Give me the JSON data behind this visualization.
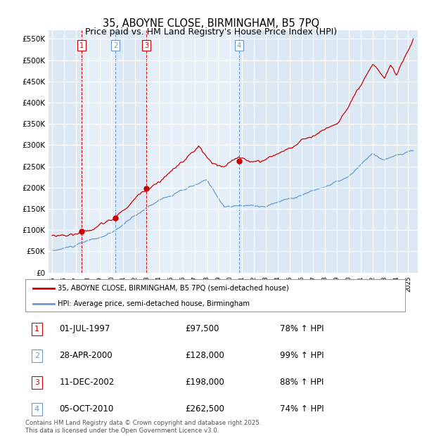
{
  "title": "35, ABOYNE CLOSE, BIRMINGHAM, B5 7PQ",
  "subtitle": "Price paid vs. HM Land Registry's House Price Index (HPI)",
  "ylim": [
    0,
    570000
  ],
  "yticks": [
    0,
    50000,
    100000,
    150000,
    200000,
    250000,
    300000,
    350000,
    400000,
    450000,
    500000,
    550000
  ],
  "background_color": "#dce9f5",
  "sale_prices": [
    97500,
    128000,
    198000,
    262500
  ],
  "sale_labels": [
    "1",
    "2",
    "3",
    "4"
  ],
  "sale_pcts": [
    "78% ↑ HPI",
    "99% ↑ HPI",
    "88% ↑ HPI",
    "74% ↑ HPI"
  ],
  "sale_dates_str": [
    "01-JUL-1997",
    "28-APR-2000",
    "11-DEC-2002",
    "05-OCT-2010"
  ],
  "sale_years": [
    1997.5,
    2000.33,
    2002.95,
    2010.75
  ],
  "sale_vline_colors": [
    "#cc0000",
    "#6699cc",
    "#cc0000",
    "#6699cc"
  ],
  "red_line_color": "#cc0000",
  "blue_line_color": "#6699cc",
  "legend_label_red": "35, ABOYNE CLOSE, BIRMINGHAM, B5 7PQ (semi-detached house)",
  "legend_label_blue": "HPI: Average price, semi-detached house, Birmingham",
  "footer": "Contains HM Land Registry data © Crown copyright and database right 2025.\nThis data is licensed under the Open Government Licence v3.0.",
  "title_fontsize": 10.5,
  "subtitle_fontsize": 9,
  "xlim_left": 1994.7,
  "xlim_right": 2025.8,
  "shaded_region_color": "#d0e4f7",
  "shaded_region_alpha": 0.5
}
